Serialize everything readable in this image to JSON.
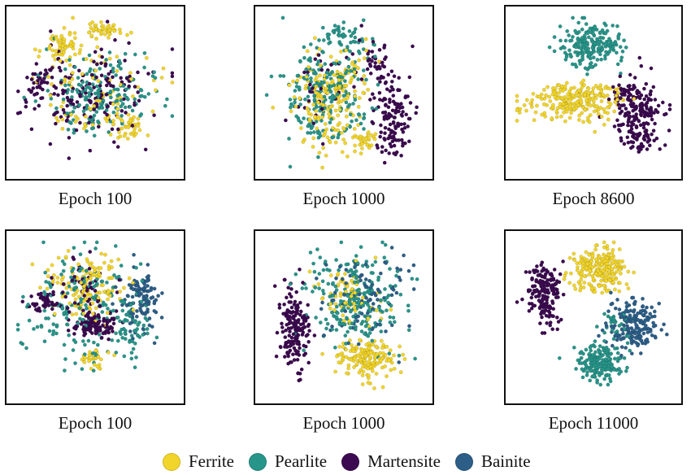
{
  "chart_data": {
    "type": "scatter",
    "legend": {
      "placement": "bottom",
      "entries": [
        "Ferrite",
        "Pearlite",
        "Martensite",
        "Bainite"
      ]
    },
    "colors": {
      "Ferrite": "#f2d52a",
      "Pearlite": "#27958a",
      "Martensite": "#3c0a50",
      "Bainite": "#2c5e88"
    },
    "grid": false,
    "axes_visible": false,
    "panels": [
      {
        "caption": "Epoch 100",
        "classes": [
          "Ferrite",
          "Pearlite",
          "Martensite"
        ],
        "clusters": [
          {
            "class": "Ferrite",
            "cx": 0.3,
            "cy": 0.2,
            "rx": 0.1,
            "ry": 0.1,
            "n": 60
          },
          {
            "class": "Ferrite",
            "cx": 0.55,
            "cy": 0.1,
            "rx": 0.12,
            "ry": 0.06,
            "n": 45
          },
          {
            "class": "Ferrite",
            "cx": 0.7,
            "cy": 0.72,
            "rx": 0.1,
            "ry": 0.08,
            "n": 40
          },
          {
            "class": "Ferrite",
            "cx": 0.5,
            "cy": 0.5,
            "rx": 0.35,
            "ry": 0.25,
            "n": 90
          },
          {
            "class": "Pearlite",
            "cx": 0.5,
            "cy": 0.52,
            "rx": 0.35,
            "ry": 0.26,
            "n": 180
          },
          {
            "class": "Martensite",
            "cx": 0.45,
            "cy": 0.52,
            "rx": 0.38,
            "ry": 0.28,
            "n": 170
          },
          {
            "class": "Martensite",
            "cx": 0.15,
            "cy": 0.45,
            "rx": 0.08,
            "ry": 0.1,
            "n": 30
          }
        ]
      },
      {
        "caption": "Epoch 1000",
        "classes": [
          "Ferrite",
          "Pearlite",
          "Martensite"
        ],
        "clusters": [
          {
            "class": "Pearlite",
            "cx": 0.38,
            "cy": 0.5,
            "rx": 0.28,
            "ry": 0.33,
            "n": 220
          },
          {
            "class": "Pearlite",
            "cx": 0.5,
            "cy": 0.15,
            "rx": 0.15,
            "ry": 0.1,
            "n": 40
          },
          {
            "class": "Ferrite",
            "cx": 0.42,
            "cy": 0.52,
            "rx": 0.22,
            "ry": 0.3,
            "n": 200
          },
          {
            "class": "Ferrite",
            "cx": 0.62,
            "cy": 0.8,
            "rx": 0.08,
            "ry": 0.08,
            "n": 30
          },
          {
            "class": "Martensite",
            "cx": 0.8,
            "cy": 0.65,
            "rx": 0.12,
            "ry": 0.25,
            "n": 130
          },
          {
            "class": "Martensite",
            "cx": 0.7,
            "cy": 0.3,
            "rx": 0.1,
            "ry": 0.15,
            "n": 40
          },
          {
            "class": "Martensite",
            "cx": 0.4,
            "cy": 0.5,
            "rx": 0.25,
            "ry": 0.3,
            "n": 30
          }
        ]
      },
      {
        "caption": "Epoch 8600",
        "classes": [
          "Ferrite",
          "Pearlite",
          "Martensite"
        ],
        "clusters": [
          {
            "class": "Pearlite",
            "cx": 0.48,
            "cy": 0.2,
            "rx": 0.2,
            "ry": 0.14,
            "n": 200
          },
          {
            "class": "Ferrite",
            "cx": 0.38,
            "cy": 0.55,
            "rx": 0.3,
            "ry": 0.12,
            "n": 240
          },
          {
            "class": "Martensite",
            "cx": 0.78,
            "cy": 0.65,
            "rx": 0.14,
            "ry": 0.22,
            "n": 200
          },
          {
            "class": "Martensite",
            "cx": 0.7,
            "cy": 0.5,
            "rx": 0.08,
            "ry": 0.08,
            "n": 30
          }
        ]
      },
      {
        "caption": "Epoch 100",
        "classes": [
          "Ferrite",
          "Pearlite",
          "Martensite",
          "Bainite"
        ],
        "clusters": [
          {
            "class": "Ferrite",
            "cx": 0.45,
            "cy": 0.3,
            "rx": 0.25,
            "ry": 0.18,
            "n": 140
          },
          {
            "class": "Ferrite",
            "cx": 0.5,
            "cy": 0.75,
            "rx": 0.1,
            "ry": 0.06,
            "n": 30
          },
          {
            "class": "Pearlite",
            "cx": 0.4,
            "cy": 0.45,
            "rx": 0.35,
            "ry": 0.35,
            "n": 170
          },
          {
            "class": "Pearlite",
            "cx": 0.7,
            "cy": 0.55,
            "rx": 0.1,
            "ry": 0.2,
            "n": 60
          },
          {
            "class": "Martensite",
            "cx": 0.5,
            "cy": 0.55,
            "rx": 0.12,
            "ry": 0.08,
            "n": 110
          },
          {
            "class": "Martensite",
            "cx": 0.18,
            "cy": 0.4,
            "rx": 0.08,
            "ry": 0.06,
            "n": 40
          },
          {
            "class": "Martensite",
            "cx": 0.4,
            "cy": 0.35,
            "rx": 0.25,
            "ry": 0.25,
            "n": 60
          },
          {
            "class": "Bainite",
            "cx": 0.78,
            "cy": 0.38,
            "rx": 0.12,
            "ry": 0.2,
            "n": 110
          }
        ]
      },
      {
        "caption": "Epoch 1000",
        "classes": [
          "Ferrite",
          "Pearlite",
          "Martensite",
          "Bainite"
        ],
        "clusters": [
          {
            "class": "Martensite",
            "cx": 0.2,
            "cy": 0.58,
            "rx": 0.1,
            "ry": 0.28,
            "n": 170
          },
          {
            "class": "Ferrite",
            "cx": 0.65,
            "cy": 0.75,
            "rx": 0.18,
            "ry": 0.12,
            "n": 170
          },
          {
            "class": "Ferrite",
            "cx": 0.55,
            "cy": 0.35,
            "rx": 0.2,
            "ry": 0.2,
            "n": 80
          },
          {
            "class": "Pearlite",
            "cx": 0.55,
            "cy": 0.4,
            "rx": 0.3,
            "ry": 0.3,
            "n": 230
          },
          {
            "class": "Bainite",
            "cx": 0.65,
            "cy": 0.35,
            "rx": 0.28,
            "ry": 0.28,
            "n": 90
          }
        ]
      },
      {
        "caption": "Epoch 11000",
        "classes": [
          "Ferrite",
          "Pearlite",
          "Martensite",
          "Bainite"
        ],
        "clusters": [
          {
            "class": "Martensite",
            "cx": 0.2,
            "cy": 0.35,
            "rx": 0.1,
            "ry": 0.18,
            "n": 170
          },
          {
            "class": "Ferrite",
            "cx": 0.55,
            "cy": 0.2,
            "rx": 0.18,
            "ry": 0.14,
            "n": 220
          },
          {
            "class": "Bainite",
            "cx": 0.75,
            "cy": 0.55,
            "rx": 0.15,
            "ry": 0.16,
            "n": 180
          },
          {
            "class": "Pearlite",
            "cx": 0.55,
            "cy": 0.78,
            "rx": 0.14,
            "ry": 0.12,
            "n": 180
          },
          {
            "class": "Pearlite",
            "cx": 0.65,
            "cy": 0.55,
            "rx": 0.1,
            "ry": 0.1,
            "n": 30
          }
        ]
      }
    ]
  }
}
